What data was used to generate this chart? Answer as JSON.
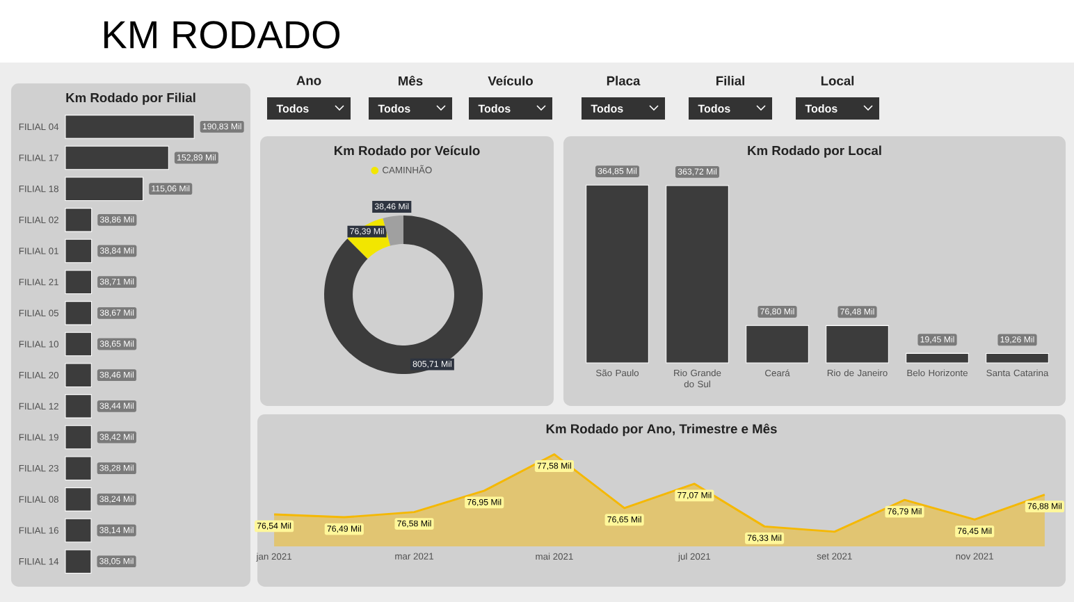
{
  "chart_data": [
    {
      "type": "other",
      "title": "KM RODADO",
      "annotations": [
        "Ano",
        "Todos",
        "Mês",
        "Todos",
        "Veículo",
        "Todos",
        "Placa",
        "Todos",
        "Filial",
        "Todos",
        "Local",
        "Todos"
      ]
    },
    {
      "type": "bar",
      "orientation": "horizontal",
      "title": "Km Rodado por Filial",
      "tick_labels": "y",
      "color": "#3c3c3c",
      "categories": [
        "FILIAL 04",
        "FILIAL 17",
        "FILIAL 18",
        "FILIAL 02",
        "FILIAL 01",
        "FILIAL 21",
        "FILIAL 05",
        "FILIAL 10",
        "FILIAL 20",
        "FILIAL 12",
        "FILIAL 19",
        "FILIAL 23",
        "FILIAL 08",
        "FILIAL 16",
        "FILIAL 14"
      ],
      "values": [
        190.83,
        152.89,
        115.06,
        38.86,
        38.84,
        38.71,
        38.67,
        38.65,
        38.46,
        38.44,
        38.42,
        38.28,
        38.24,
        38.14,
        38.05
      ],
      "value_labels": [
        "190,83 Mil",
        "152,89 Mil",
        "115,06 Mil",
        "38,86 Mil",
        "38,84 Mil",
        "38,71 Mil",
        "38,67 Mil",
        "38,65 Mil",
        "38,46 Mil",
        "38,44 Mil",
        "38,42 Mil",
        "38,28 Mil",
        "38,24 Mil",
        "38,14 Mil",
        "38,05 Mil"
      ]
    },
    {
      "type": "donut",
      "title": "Km Rodado por Veículo",
      "legend": "top",
      "categories": [
        null,
        "CAMINHÃO",
        null
      ],
      "values": [
        805.71,
        76.39,
        38.46
      ],
      "colors": [
        "#3c3c3c",
        "#f2e600",
        "#a0a0a0"
      ],
      "value_labels": [
        "805,71 Mil",
        "76,39 Mil",
        "38,46 Mil"
      ]
    },
    {
      "type": "bar",
      "title": "Km Rodado por Local",
      "tick_labels": "x",
      "color": "#3c3c3c",
      "categories": [
        "São Paulo",
        "Rio Grande do Sul",
        "Ceará",
        "Rio de Janeiro",
        "Belo Horizonte",
        "Santa Catarina"
      ],
      "values": [
        364.85,
        363.72,
        76.8,
        76.48,
        19.45,
        19.26
      ],
      "value_labels": [
        "364,85 Mil",
        "363,72 Mil",
        "76,80 Mil",
        "76,48 Mil",
        "19,45 Mil",
        "19,26 Mil"
      ]
    },
    {
      "type": "area",
      "title": "Km Rodado por Ano, Trimestre e Mês",
      "tick_labels": "x",
      "color": "#f5b800",
      "categories": [
        "jan 2021",
        null,
        "mar 2021",
        null,
        "mai 2021",
        null,
        "jul 2021",
        null,
        "set 2021",
        null,
        "nov 2021",
        null
      ],
      "values": [
        76.54,
        76.49,
        76.58,
        76.95,
        77.58,
        76.65,
        77.07,
        76.33,
        76.24,
        76.79,
        76.45,
        76.88
      ],
      "value_labels": [
        "76,54 Mil",
        "76,49 Mil",
        "76,58 Mil",
        "76,95 Mil",
        "77,58 Mil",
        "76,65 Mil",
        "77,07 Mil",
        "76,33 Mil",
        null,
        "76,79 Mil",
        "76,45 Mil",
        "76,88 Mil"
      ]
    }
  ]
}
